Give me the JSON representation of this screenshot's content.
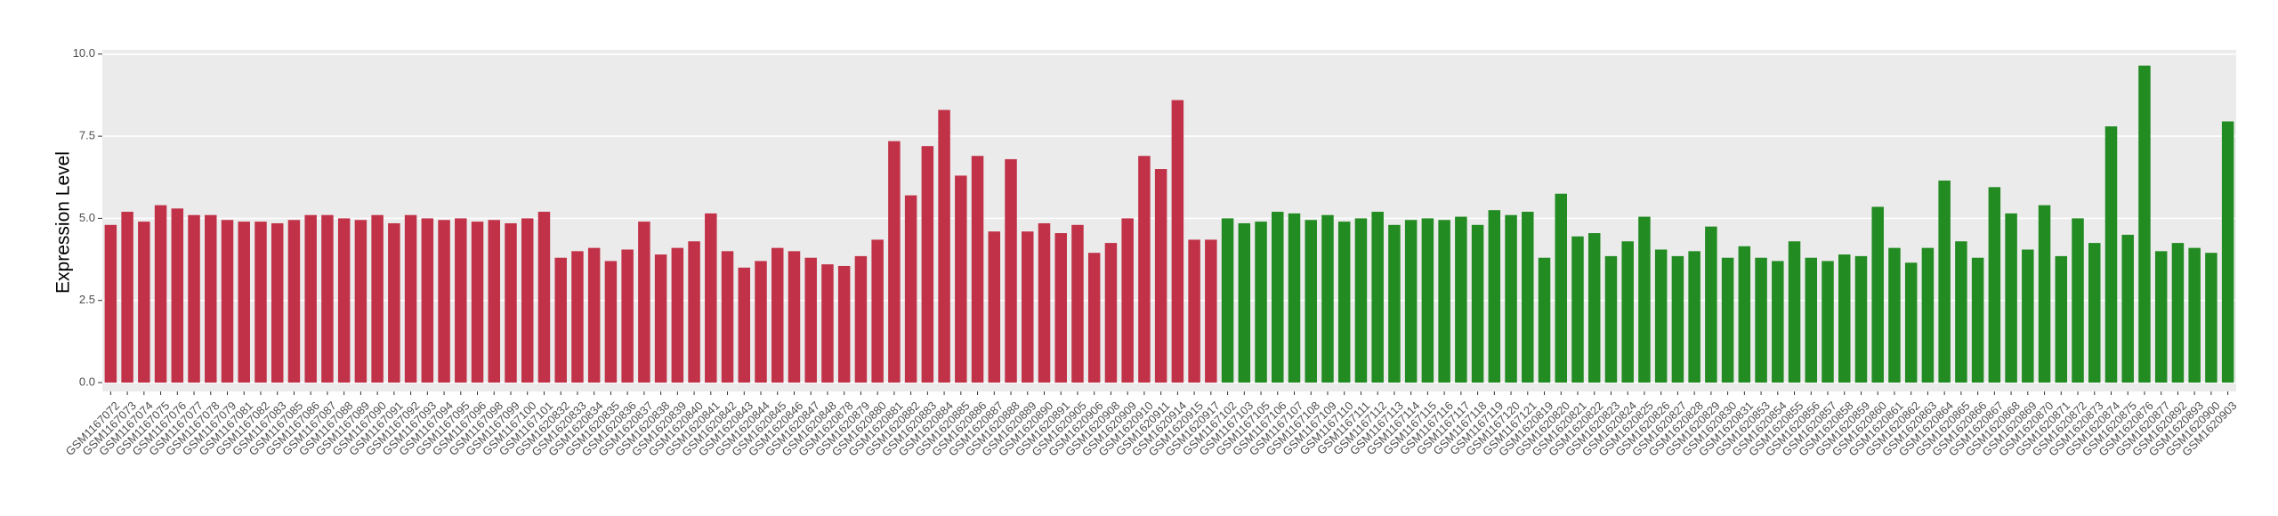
{
  "chart_data": {
    "type": "bar",
    "y_label": "Expression Level",
    "ylim": [
      -0.27,
      10.13
    ],
    "yticks": [
      {
        "value": 0,
        "label": "0.0"
      },
      {
        "value": 2.5,
        "label": "2.5"
      },
      {
        "value": 5,
        "label": "5.0"
      },
      {
        "value": 7.5,
        "label": "7.5"
      },
      {
        "value": 10,
        "label": "10.0"
      }
    ],
    "grid": true,
    "series": [
      {
        "color": "#c13248",
        "categories": [
          "GSM1167072",
          "GSM1167073",
          "GSM1167074",
          "GSM1167075",
          "GSM1167076",
          "GSM1167077",
          "GSM1167078",
          "GSM1167079",
          "GSM1167081",
          "GSM1167082",
          "GSM1167083",
          "GSM1167085",
          "GSM1167086",
          "GSM1167087",
          "GSM1167088",
          "GSM1167089",
          "GSM1167090",
          "GSM1167091",
          "GSM1167092",
          "GSM1167093",
          "GSM1167094",
          "GSM1167095",
          "GSM1167096",
          "GSM1167098",
          "GSM1167099",
          "GSM1167100",
          "GSM1167101",
          "GSM1620832",
          "GSM1620833",
          "GSM1620834",
          "GSM1620835",
          "GSM1620836",
          "GSM1620837",
          "GSM1620838",
          "GSM1620839",
          "GSM1620840",
          "GSM1620841",
          "GSM1620842",
          "GSM1620843",
          "GSM1620844",
          "GSM1620845",
          "GSM1620846",
          "GSM1620847",
          "GSM1620848",
          "GSM1620878",
          "GSM1620879",
          "GSM1620880",
          "GSM1620881",
          "GSM1620882",
          "GSM1620883",
          "GSM1620884",
          "GSM1620885",
          "GSM1620886",
          "GSM1620887",
          "GSM1620888",
          "GSM1620889",
          "GSM1620890",
          "GSM1620891",
          "GSM1620905",
          "GSM1620906",
          "GSM1620908",
          "GSM1620909",
          "GSM1620910",
          "GSM1620911",
          "GSM1620914",
          "GSM1620915",
          "GSM1620917"
        ],
        "values": [
          4.8,
          5.2,
          4.9,
          5.4,
          5.3,
          5.1,
          5.1,
          4.95,
          4.9,
          4.9,
          4.85,
          4.95,
          5.1,
          5.1,
          5.0,
          4.95,
          5.1,
          4.85,
          5.1,
          5.0,
          4.95,
          5.0,
          4.9,
          4.95,
          4.85,
          5.0,
          5.2,
          3.8,
          4.0,
          4.1,
          3.7,
          4.05,
          4.9,
          3.9,
          4.1,
          4.3,
          5.15,
          4.0,
          3.5,
          3.7,
          4.1,
          4.0,
          3.8,
          3.6,
          3.55,
          3.85,
          4.35,
          7.35,
          5.7,
          7.2,
          8.3,
          6.3,
          6.9,
          4.6,
          6.8,
          4.6,
          4.85,
          4.55,
          4.8,
          3.95,
          4.25,
          5.0,
          6.9,
          6.5,
          8.6,
          4.35,
          4.35
        ]
      },
      {
        "color": "#228b22",
        "categories": [
          "GSM1167102",
          "GSM1167103",
          "GSM1167105",
          "GSM1167106",
          "GSM1167107",
          "GSM1167108",
          "GSM1167109",
          "GSM1167110",
          "GSM1167111",
          "GSM1167112",
          "GSM1167113",
          "GSM1167114",
          "GSM1167115",
          "GSM1167116",
          "GSM1167117",
          "GSM1167118",
          "GSM1167119",
          "GSM1167120",
          "GSM1167121",
          "GSM1620819",
          "GSM1620820",
          "GSM1620821",
          "GSM1620822",
          "GSM1620823",
          "GSM1620824",
          "GSM1620825",
          "GSM1620826",
          "GSM1620827",
          "GSM1620828",
          "GSM1620829",
          "GSM1620830",
          "GSM1620831",
          "GSM1620853",
          "GSM1620854",
          "GSM1620855",
          "GSM1620856",
          "GSM1620857",
          "GSM1620858",
          "GSM1620859",
          "GSM1620860",
          "GSM1620861",
          "GSM1620862",
          "GSM1620863",
          "GSM1620864",
          "GSM1620865",
          "GSM1620866",
          "GSM1620867",
          "GSM1620868",
          "GSM1620869",
          "GSM1620870",
          "GSM1620871",
          "GSM1620872",
          "GSM1620873",
          "GSM1620874",
          "GSM1620875",
          "GSM1620876",
          "GSM1620877",
          "GSM1620892",
          "GSM1620893",
          "GSM1620900",
          "GSM1620903"
        ],
        "values": [
          5.0,
          4.85,
          4.9,
          5.2,
          5.15,
          4.95,
          5.1,
          4.9,
          5.0,
          5.2,
          4.8,
          4.95,
          5.0,
          4.95,
          5.05,
          4.8,
          5.25,
          5.1,
          5.2,
          3.8,
          5.75,
          4.45,
          4.55,
          3.85,
          4.3,
          5.05,
          4.05,
          3.85,
          4.0,
          4.75,
          3.8,
          4.15,
          3.8,
          3.7,
          4.3,
          3.8,
          3.7,
          3.9,
          3.85,
          5.35,
          4.1,
          3.65,
          4.1,
          6.15,
          4.3,
          3.8,
          5.95,
          5.15,
          4.05,
          5.4,
          3.85,
          5.0,
          4.25,
          7.8,
          4.5,
          9.65,
          4.0,
          4.25,
          4.1,
          3.95,
          7.95
        ]
      }
    ]
  }
}
